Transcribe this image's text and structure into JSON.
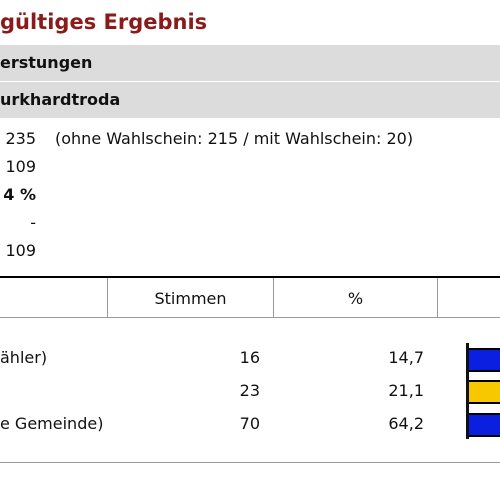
{
  "header": {
    "title": "gültiges Ergebnis",
    "rows": [
      "erstungen",
      "urkhardtroda"
    ]
  },
  "stats": [
    {
      "value": "235",
      "note": "(ohne Wahlschein: 215 / mit Wahlschein: 20)"
    },
    {
      "value": "109"
    },
    {
      "value": "4 %"
    },
    {
      "value": "-"
    },
    {
      "value": "109"
    }
  ],
  "table": {
    "columns": [
      "Stimmen",
      "%"
    ],
    "rows": [
      {
        "name": "ähler)",
        "votes": "16",
        "percent": "14,7"
      },
      {
        "name": null,
        "votes": "23",
        "percent": "21,1"
      },
      {
        "name": "e Gemeinde)",
        "votes": "70",
        "percent": "64,2"
      }
    ]
  }
}
